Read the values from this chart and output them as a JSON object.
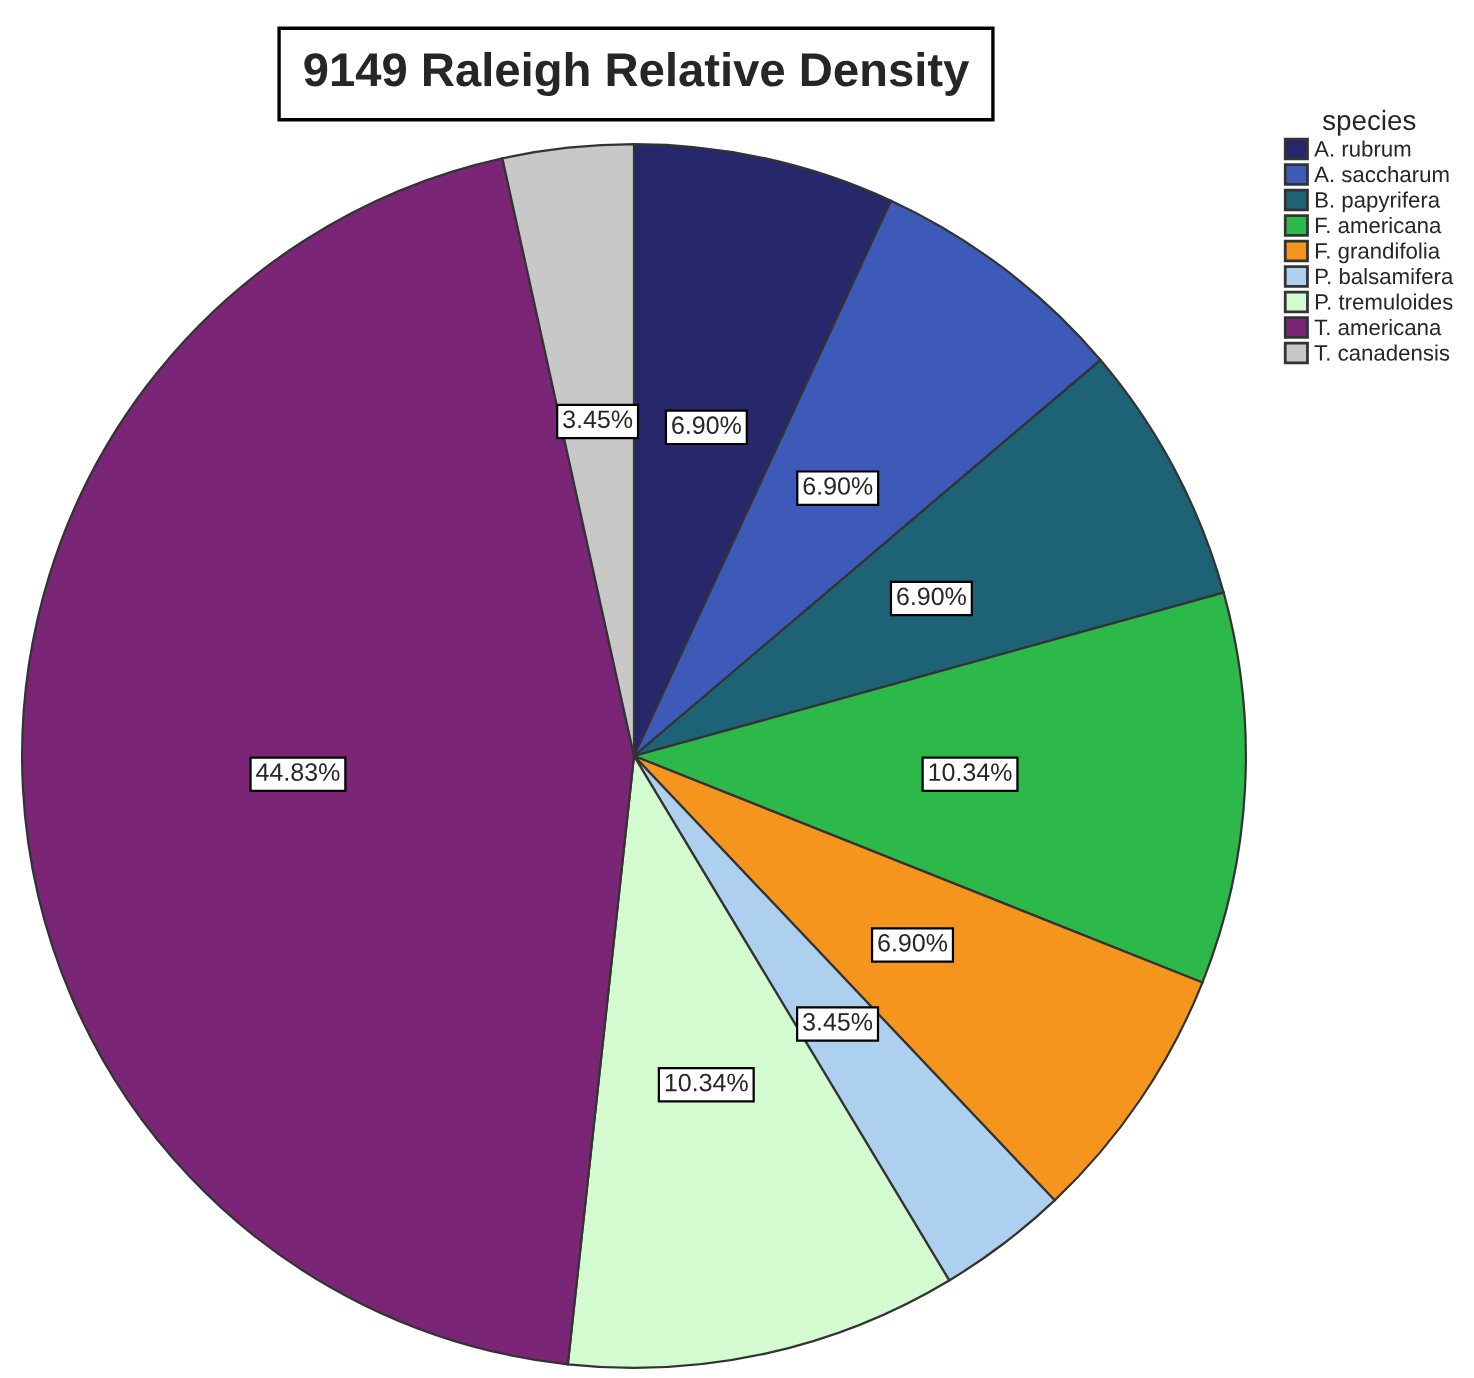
{
  "chart_data": {
    "type": "pie",
    "title": "9149 Raleigh Relative Density",
    "legend_title": "species",
    "legend": "top right",
    "categories": [
      "A. rubrum",
      "A. saccharum",
      "B. papyrifera",
      "F. americana",
      "F. grandifolia",
      "P. balsamifera",
      "P. tremuloides",
      "T. americana",
      "T. canadensis"
    ],
    "values": [
      6.9,
      6.9,
      6.9,
      10.34,
      6.9,
      3.45,
      10.34,
      44.83,
      3.45
    ],
    "value_labels": [
      "6.90%",
      "6.90%",
      "6.90%",
      "10.34%",
      "6.90%",
      "3.45%",
      "10.34%",
      "44.83%",
      "3.45%"
    ],
    "colors": [
      "#27276b",
      "#3e5ab8",
      "#1e6275",
      "#2db84a",
      "#f5951e",
      "#acd0ee",
      "#d4fbd0",
      "#7b2577",
      "#c8c8c8"
    ]
  }
}
